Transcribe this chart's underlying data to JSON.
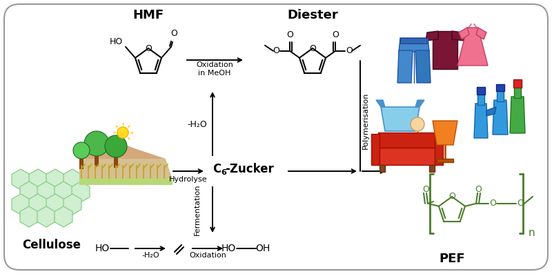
{
  "bg_color": "#ffffff",
  "border_color": "#aaaaaa",
  "green_color": "#4a7c2a",
  "labels": {
    "HMF": "HMF",
    "Diester": "Diester",
    "Cellulose": "Cellulose",
    "C6Zucker_C": "C",
    "C6Zucker_6": "6",
    "C6Zucker_rest": "-Zucker",
    "Hydrolyse": "Hydrolyse",
    "PEF": "PEF",
    "minus_H2O_up": "-H₂O",
    "minus_H2O_down": "-H₂O",
    "Fermentation": "Fermentation",
    "Oxidation_MeOH": "Oxidation\nin MeOH",
    "Oxidation": "Oxidation",
    "Polymerisation": "Polymerisation",
    "n": "n"
  },
  "figsize": [
    8.0,
    3.97
  ],
  "dpi": 100
}
